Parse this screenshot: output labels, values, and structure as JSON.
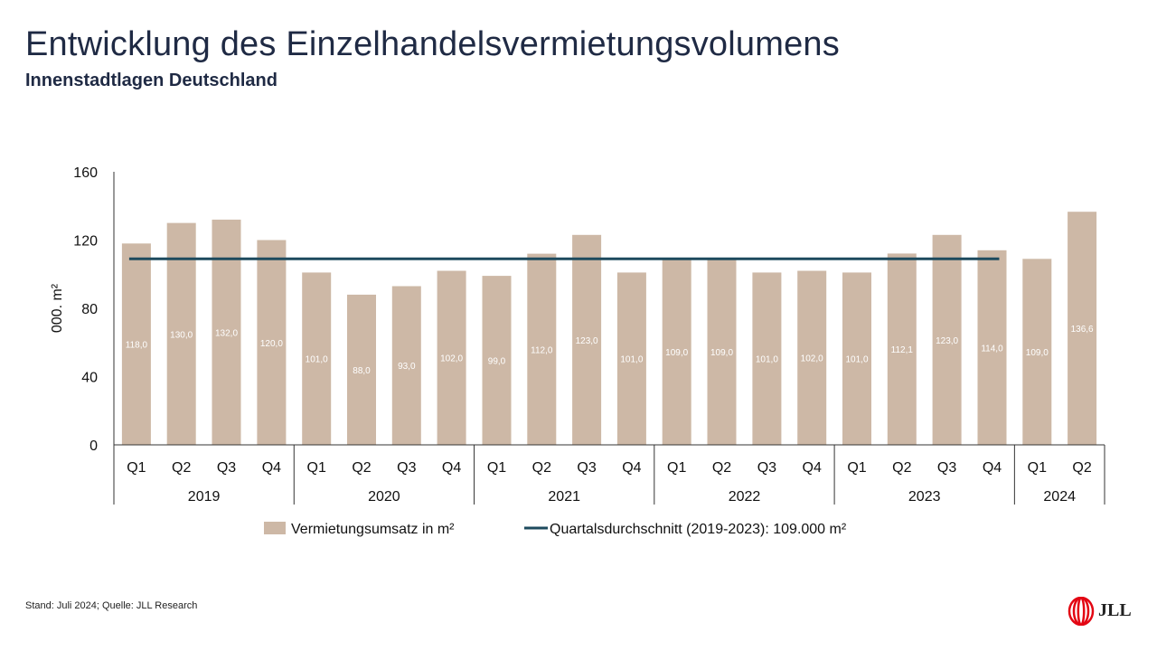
{
  "title": "Entwicklung des Einzelhandelsvermietungsvolumens",
  "subtitle": "Innenstadtlagen Deutschland",
  "footnote": "Stand: Juli 2024; Quelle: JLL Research",
  "logo": {
    "text": "JLL",
    "icon": "jll-logo-icon"
  },
  "colors": {
    "bar": "#cdb8a6",
    "line": "#1d4a5e",
    "axis": "#333333",
    "title": "#1f2a44",
    "logo_red": "#e30613"
  },
  "chart_data": {
    "type": "bar",
    "ylabel": "000. m²",
    "xlabel": "",
    "ylim": [
      0,
      160
    ],
    "yticks": [
      "0",
      "40",
      "80",
      "120",
      "160"
    ],
    "categories": [
      "Q1",
      "Q2",
      "Q3",
      "Q4",
      "Q1",
      "Q2",
      "Q3",
      "Q4",
      "Q1",
      "Q2",
      "Q3",
      "Q4",
      "Q1",
      "Q2",
      "Q3",
      "Q4",
      "Q1",
      "Q2",
      "Q3",
      "Q4",
      "Q1",
      "Q2"
    ],
    "groups": [
      {
        "label": "2019",
        "count": 4
      },
      {
        "label": "2020",
        "count": 4
      },
      {
        "label": "2021",
        "count": 4
      },
      {
        "label": "2022",
        "count": 4
      },
      {
        "label": "2023",
        "count": 4
      },
      {
        "label": "2024",
        "count": 2
      }
    ],
    "series": [
      {
        "name": "Vermietungsumsatz in m²",
        "type": "bar",
        "values": [
          118,
          130,
          132,
          120,
          101,
          88,
          93,
          102,
          99,
          112,
          123,
          101,
          109,
          109,
          101,
          102,
          101,
          112.1,
          123,
          114,
          109,
          136.6
        ],
        "labels": [
          "118,0",
          "130,0",
          "132,0",
          "120,0",
          "101,0",
          "88,0",
          "93,0",
          "102,0",
          "99,0",
          "112,0",
          "123,0",
          "101,0",
          "109,0",
          "109,0",
          "101,0",
          "102,0",
          "101,0",
          "112,1",
          "123,0",
          "114,0",
          "109,0",
          "136,6"
        ]
      },
      {
        "name": "Quartalsdurchschnitt (2019-2023): 109.000 m²",
        "type": "line",
        "value": 109,
        "range": [
          "2019 Q1",
          "2023 Q4"
        ]
      }
    ],
    "legend": {
      "position": "bottom"
    },
    "grid": false
  }
}
